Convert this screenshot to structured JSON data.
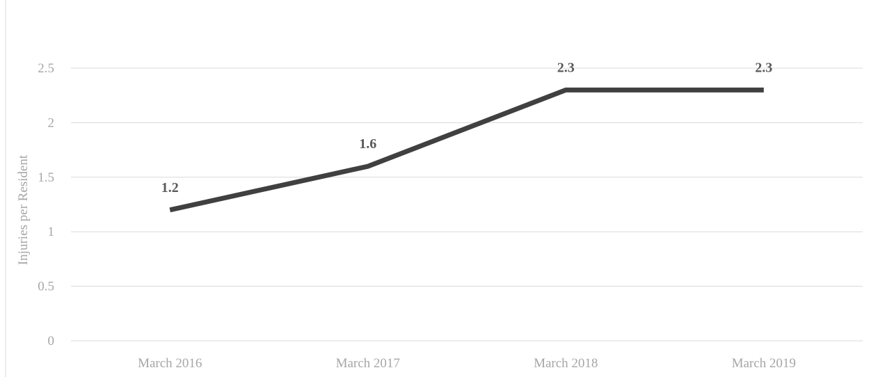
{
  "chart_data": {
    "type": "line",
    "title": "",
    "xlabel": "",
    "ylabel": "Injuries per Resident",
    "categories": [
      "March 2016",
      "March 2017",
      "March 2018",
      "March 2019"
    ],
    "series": [
      {
        "values": [
          1.2,
          1.6,
          2.3,
          2.3
        ],
        "color": "#404040"
      }
    ],
    "data_labels": [
      "1.2",
      "1.6",
      "2.3",
      "2.3"
    ],
    "y_ticks": [
      0,
      0.5,
      1,
      1.5,
      2,
      2.5
    ],
    "y_tick_labels": [
      "0",
      "0.5",
      "1",
      "1.5",
      "2",
      "2.5"
    ],
    "ylim": [
      0,
      2.5
    ],
    "grid": true,
    "legend": "none",
    "colors": {
      "gridline": "#d9d9d9",
      "tick_text": "#a6a6a6",
      "data_label": "#595959"
    }
  }
}
